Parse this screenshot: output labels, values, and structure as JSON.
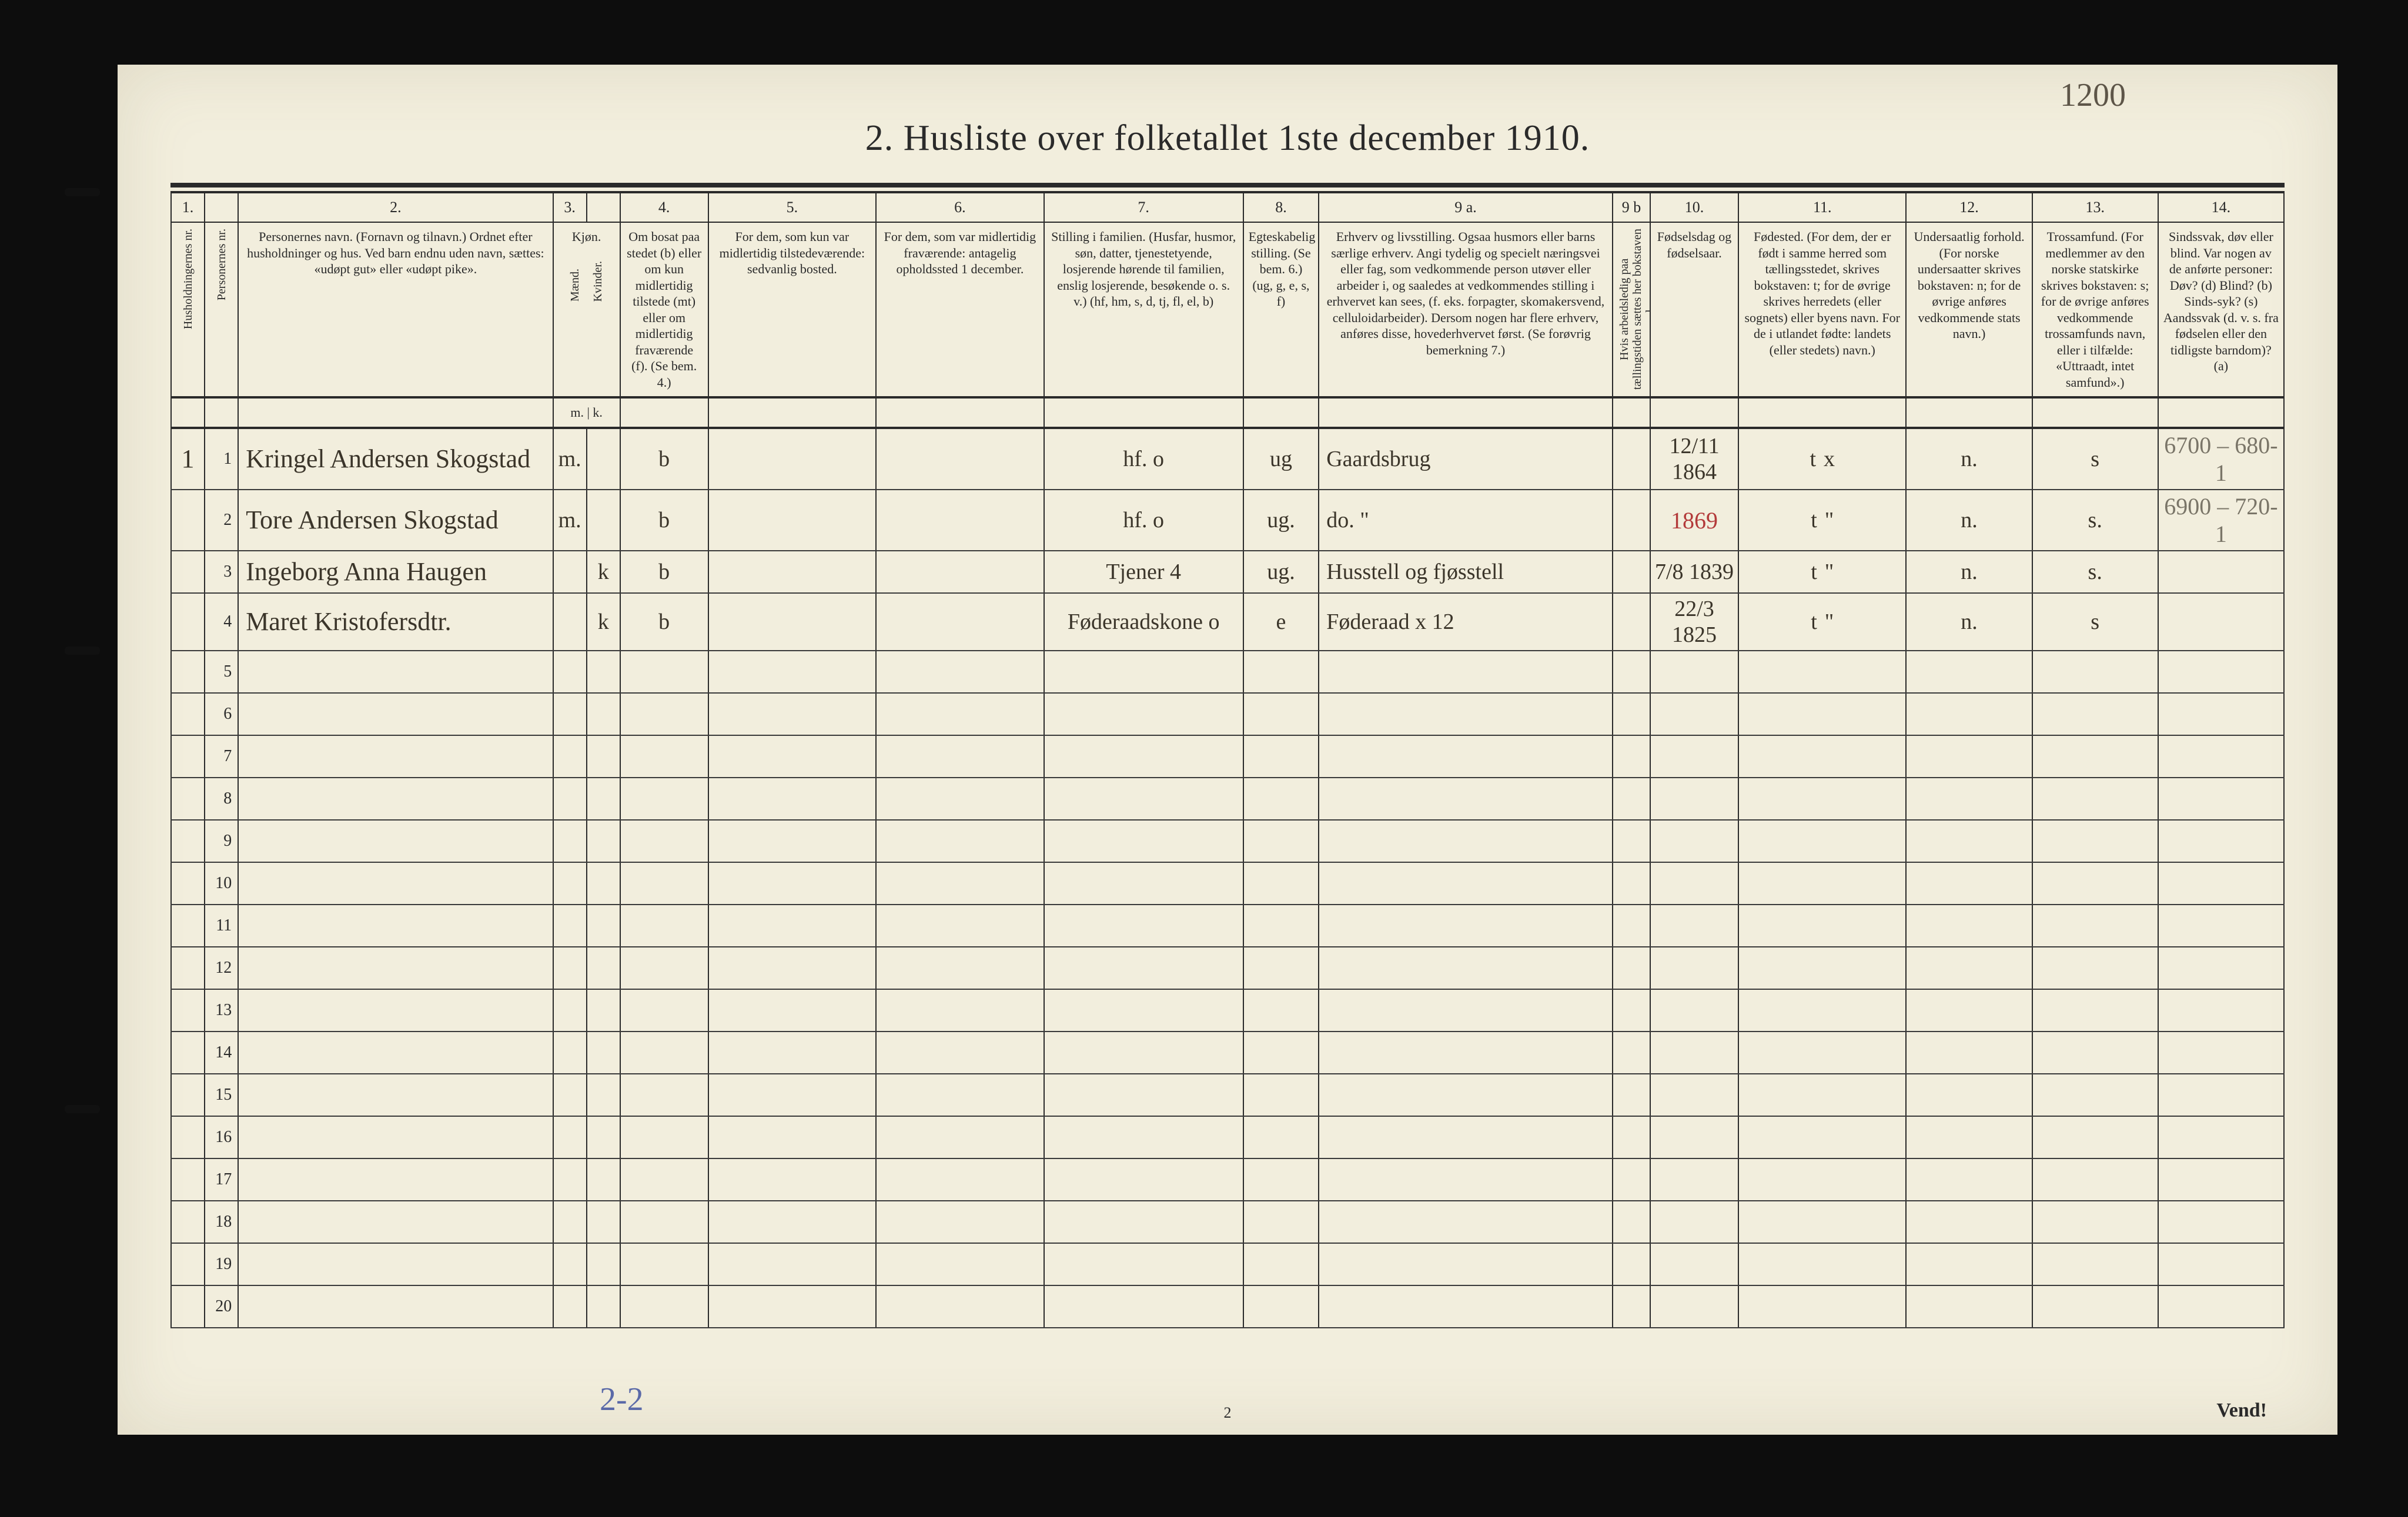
{
  "topRightPencil": "1200",
  "title": "2.  Husliste over folketallet 1ste december 1910.",
  "colNumbers": [
    "1.",
    "",
    "2.",
    "3.",
    "",
    "4.",
    "5.",
    "6.",
    "7.",
    "8.",
    "9 a.",
    "9 b",
    "10.",
    "11.",
    "12.",
    "13.",
    "14."
  ],
  "headers": {
    "c1": "Husholdningernes nr.",
    "c1b": "Personernes nr.",
    "c2": "Personernes navn.\n(Fornavn og tilnavn.)\nOrdnet efter husholdninger og hus.\nVed barn endnu uden navn, sættes: «udøpt gut» eller «udøpt pike».",
    "c3": "Kjøn.",
    "c3a": "Mænd.",
    "c3b": "Kvinder.",
    "c4": "Om bosat paa stedet (b) eller om kun midlertidig tilstede (mt) eller om midlertidig fraværende (f). (Se bem. 4.)",
    "c5": "For dem, som kun var midlertidig tilstedeværende:\nsedvanlig bosted.",
    "c6": "For dem, som var midlertidig fraværende:\nantagelig opholdssted 1 december.",
    "c7": "Stilling i familien.\n(Husfar, husmor, søn, datter, tjenestetyende, losjerende hørende til familien, enslig losjerende, besøkende o. s. v.)\n(hf, hm, s, d, tj, fl, el, b)",
    "c8": "Egteskabelig stilling.\n(Se bem. 6.)\n(ug, g, e, s, f)",
    "c9a": "Erhverv og livsstilling.\nOgsaa husmors eller barns særlige erhverv. Angi tydelig og specielt næringsvei eller fag, som vedkommende person utøver eller arbeider i, og saaledes at vedkommendes stilling i erhvervet kan sees, (f. eks. forpagter, skomakersvend, celluloidarbeider). Dersom nogen har flere erhverv, anføres disse, hovederhvervet først.\n(Se forøvrig bemerkning 7.)",
    "c9b": "Hvis arbeidsledig paa tællingstiden sættes her bokstaven l.",
    "c10": "Fødselsdag og fødselsaar.",
    "c11": "Fødested.\n(For dem, der er født i samme herred som tællingsstedet, skrives bokstaven: t; for de øvrige skrives herredets (eller sognets) eller byens navn. For de i utlandet fødte: landets (eller stedets) navn.)",
    "c12": "Undersaatlig forhold.\n(For norske undersaatter skrives bokstaven: n; for de øvrige anføres vedkommende stats navn.)",
    "c13": "Trossamfund.\n(For medlemmer av den norske statskirke skrives bokstaven: s; for de øvrige anføres vedkommende trossamfunds navn, eller i tilfælde: «Uttraadt, intet samfund».)",
    "c14": "Sindssvak, døv eller blind.\nVar nogen av de anførte personer:\nDøv? (d)\nBlind? (b)\nSinds-syk? (s)\nAandssvak (d. v. s. fra fødselen eller den tidligste barndom)? (a)",
    "mk": "m. | k."
  },
  "rows": [
    {
      "hh": "1",
      "pn": "1",
      "name": "Kringel Andersen Skogstad",
      "sexM": "m.",
      "sexK": "",
      "res": "b",
      "col5": "",
      "col6": "",
      "famPos": "hf.    o",
      "mar": "ug",
      "occ": "Gaardsbrug",
      "c9b": "",
      "birth": "12/11 1864",
      "birthplace": "t",
      "birthplaceMark": "x",
      "nat": "n.",
      "rel": "s",
      "c14": "",
      "marginRight": "6700 – 680-1"
    },
    {
      "hh": "",
      "pn": "2",
      "name": "Tore Andersen Skogstad",
      "sexM": "m.",
      "sexK": "",
      "res": "b",
      "col5": "",
      "col6": "",
      "famPos": "hf.    o",
      "mar": "ug.",
      "occ": "do.   \"",
      "c9b": "",
      "birth": "1869",
      "birthRed": true,
      "birthplace": "t",
      "birthplaceMark": "\"",
      "nat": "n.",
      "rel": "s.",
      "c14": "",
      "marginRight": "6900 – 720-1"
    },
    {
      "hh": "",
      "pn": "3",
      "name": "Ingeborg Anna Haugen",
      "sexM": "",
      "sexK": "k",
      "res": "b",
      "col5": "",
      "col6": "",
      "famPos": "Tjener    4",
      "mar": "ug.",
      "occ": "Husstell og fjøsstell",
      "c9b": "",
      "birth": "7/8 1839",
      "birthplace": "t",
      "birthplaceMark": "\"",
      "nat": "n.",
      "rel": "s.",
      "c14": ""
    },
    {
      "hh": "",
      "pn": "4",
      "name": "Maret Kristofersdtr.",
      "sexM": "",
      "sexK": "k",
      "res": "b",
      "col5": "",
      "col6": "",
      "famPos": "Føderaadskone  o",
      "mar": "e",
      "occ": "Føderaad  x 12",
      "c9b": "",
      "birth": "22/3 1825",
      "birthplace": "t",
      "birthplaceMark": "\"",
      "nat": "n.",
      "rel": "s",
      "c14": ""
    }
  ],
  "blankRowCount": 16,
  "footer": {
    "leftPencil": "2-2",
    "pageNum": "2",
    "right": "Vend!"
  },
  "colors": {
    "paper": "#f2eedd",
    "ink": "#2a2a2a",
    "handInk": "#3b352a",
    "redInk": "#b33a3a",
    "pencil": "#7a7568",
    "bluePencil": "#5b6aa8"
  }
}
